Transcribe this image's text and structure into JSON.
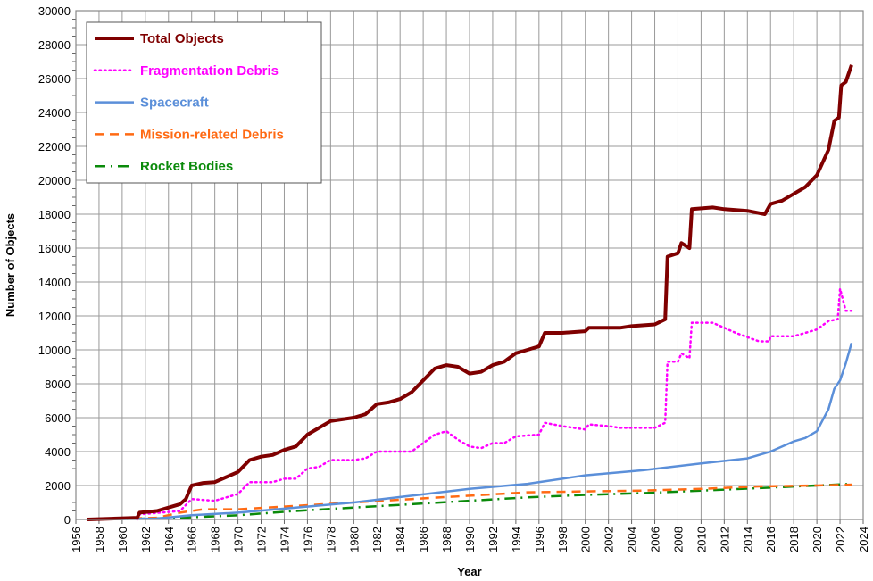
{
  "chart_data": {
    "type": "line",
    "title": "",
    "xlabel": "Year",
    "ylabel": "Number of Objects",
    "xlim": [
      1956,
      2024
    ],
    "ylim": [
      0,
      30000
    ],
    "xticks": [
      1956,
      1958,
      1960,
      1962,
      1964,
      1966,
      1968,
      1970,
      1972,
      1974,
      1976,
      1978,
      1980,
      1982,
      1984,
      1986,
      1988,
      1990,
      1992,
      1994,
      1996,
      1998,
      2000,
      2002,
      2004,
      2006,
      2008,
      2010,
      2012,
      2014,
      2016,
      2018,
      2020,
      2022,
      2024
    ],
    "yticks": [
      0,
      2000,
      4000,
      6000,
      8000,
      10000,
      12000,
      14000,
      16000,
      18000,
      20000,
      22000,
      24000,
      26000,
      28000,
      30000
    ],
    "grid": true,
    "legend_position": "top-left",
    "series": [
      {
        "name": "Total Objects",
        "color": "#7f0000",
        "style": "solid-thick",
        "x": [
          1957,
          1961.3,
          1961.5,
          1963,
          1964,
          1965,
          1965.5,
          1966,
          1967,
          1968,
          1969,
          1970,
          1971,
          1972,
          1973,
          1974,
          1975,
          1976,
          1977,
          1978,
          1979,
          1980,
          1981,
          1982,
          1983,
          1984,
          1985,
          1986,
          1987,
          1988,
          1989,
          1990,
          1991,
          1992,
          1993,
          1994,
          1995,
          1996,
          1996.5,
          1998,
          2000,
          2000.3,
          2002,
          2003,
          2004,
          2006,
          2006.9,
          2007.1,
          2008,
          2008.3,
          2009,
          2009.2,
          2011,
          2012,
          2014,
          2015.5,
          2016,
          2017,
          2018,
          2019,
          2020,
          2021,
          2021.5,
          2021.9,
          2022.1,
          2022.5,
          2023
        ],
        "y": [
          0,
          100,
          400,
          500,
          700,
          900,
          1200,
          2000,
          2150,
          2200,
          2500,
          2800,
          3500,
          3700,
          3800,
          4100,
          4300,
          5000,
          5400,
          5800,
          5900,
          6000,
          6200,
          6800,
          6900,
          7100,
          7500,
          8200,
          8900,
          9100,
          9000,
          8600,
          8700,
          9100,
          9300,
          9800,
          10000,
          10200,
          11000,
          11000,
          11100,
          11300,
          11300,
          11300,
          11400,
          11500,
          11800,
          15500,
          15700,
          16300,
          16000,
          18300,
          18400,
          18300,
          18200,
          18000,
          18600,
          18800,
          19200,
          19600,
          20300,
          21800,
          23500,
          23700,
          25600,
          25800,
          26800
        ]
      },
      {
        "name": "Fragmentation Debris",
        "color": "#ff00ff",
        "style": "dotted",
        "x": [
          1961.3,
          1961.5,
          1965,
          1966,
          1968,
          1970,
          1971,
          1973,
          1974,
          1975,
          1976,
          1977,
          1978,
          1980,
          1981,
          1982,
          1985,
          1986,
          1987,
          1988,
          1989,
          1990,
          1991,
          1992,
          1993,
          1994,
          1996,
          1996.5,
          1998,
          2000,
          2000.3,
          2002,
          2003,
          2006,
          2006.9,
          2007.1,
          2008,
          2008.3,
          2009,
          2009.2,
          2011,
          2013,
          2015,
          2015.9,
          2016,
          2018,
          2019,
          2020,
          2021,
          2021.8,
          2022,
          2022.5,
          2023
        ],
        "y": [
          0,
          300,
          500,
          1200,
          1100,
          1500,
          2200,
          2200,
          2400,
          2400,
          3000,
          3100,
          3500,
          3500,
          3600,
          4000,
          4000,
          4500,
          5000,
          5200,
          4700,
          4300,
          4200,
          4500,
          4500,
          4900,
          5000,
          5700,
          5500,
          5300,
          5600,
          5500,
          5400,
          5400,
          5700,
          9300,
          9300,
          9800,
          9500,
          11600,
          11600,
          11000,
          10500,
          10500,
          10800,
          10800,
          11000,
          11200,
          11700,
          11800,
          13600,
          12300,
          12300
        ]
      },
      {
        "name": "Spacecraft",
        "color": "#5b8fd9",
        "style": "solid",
        "x": [
          1957,
          1963,
          1966,
          1970,
          1975,
          1980,
          1985,
          1990,
          1995,
          2000,
          2005,
          2010,
          2014,
          2016,
          2018,
          2019,
          2020,
          2021,
          2021.5,
          2022,
          2022.5,
          2023
        ],
        "y": [
          0,
          50,
          250,
          400,
          700,
          1000,
          1400,
          1800,
          2100,
          2600,
          2900,
          3300,
          3600,
          4000,
          4600,
          4800,
          5200,
          6500,
          7700,
          8200,
          9200,
          10400
        ]
      },
      {
        "name": "Mission-related Debris",
        "color": "#ff6a13",
        "style": "dashed",
        "x": [
          1957,
          1963,
          1965,
          1967,
          1970,
          1975,
          1980,
          1985,
          1990,
          1995,
          2000,
          2005,
          2010,
          2015,
          2020,
          2023
        ],
        "y": [
          0,
          100,
          400,
          600,
          600,
          800,
          1000,
          1200,
          1400,
          1600,
          1650,
          1700,
          1800,
          1950,
          2000,
          2050
        ]
      },
      {
        "name": "Rocket Bodies",
        "color": "#0a8a0a",
        "style": "dash-dot",
        "x": [
          1957,
          1962,
          1965,
          1970,
          1975,
          1980,
          1985,
          1990,
          1995,
          2000,
          2005,
          2010,
          2015,
          2020,
          2023
        ],
        "y": [
          0,
          50,
          100,
          250,
          500,
          700,
          900,
          1100,
          1300,
          1450,
          1550,
          1700,
          1850,
          2000,
          2100
        ]
      }
    ]
  }
}
